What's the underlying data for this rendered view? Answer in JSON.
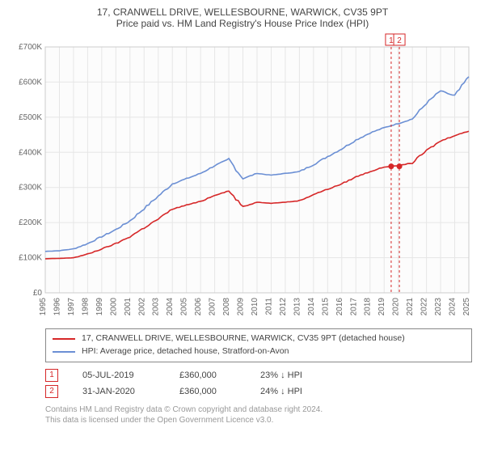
{
  "title_main": "17, CRANWELL DRIVE, WELLESBOURNE, WARWICK, CV35 9PT",
  "title_sub": "Price paid vs. HM Land Registry's House Price Index (HPI)",
  "title_fontsize": 12,
  "chart": {
    "type": "line",
    "background_color": "#fcfcfc",
    "plot_border_color": "#cccccc",
    "grid_color": "#e6e6e6",
    "x": {
      "domain_years": [
        1995,
        2025
      ],
      "ticks": [
        1995,
        1996,
        1997,
        1998,
        1999,
        2000,
        2001,
        2002,
        2003,
        2004,
        2005,
        2006,
        2007,
        2008,
        2009,
        2010,
        2011,
        2012,
        2013,
        2014,
        2015,
        2016,
        2017,
        2018,
        2019,
        2020,
        2021,
        2022,
        2023,
        2024,
        2025
      ],
      "tick_rotation_deg": -90,
      "tick_fontsize": 10
    },
    "y": {
      "domain": [
        0,
        700000
      ],
      "ticks": [
        0,
        100000,
        200000,
        300000,
        400000,
        500000,
        600000,
        700000
      ],
      "tick_labels": [
        "£0",
        "£100K",
        "£200K",
        "£300K",
        "£400K",
        "£500K",
        "£600K",
        "£700K"
      ],
      "tick_fontsize": 10
    },
    "series": [
      {
        "id": "property",
        "label": "17, CRANWELL DRIVE, WELLESBOURNE, WARWICK, CV35 9PT (detached house)",
        "color": "#d62728",
        "line_width": 1.6,
        "points_yearly": [
          97000,
          98000,
          100000,
          110000,
          125000,
          140000,
          160000,
          185000,
          210000,
          238000,
          250000,
          260000,
          278000,
          290000,
          245000,
          258000,
          255000,
          258000,
          262000,
          280000,
          295000,
          310000,
          330000,
          345000,
          358000,
          362000,
          370000,
          405000,
          432000,
          448000,
          460000
        ]
      },
      {
        "id": "hpi",
        "label": "HPI: Average price, detached house, Stratford-on-Avon",
        "color": "#6b8fd4",
        "line_width": 1.6,
        "points_yearly": [
          118000,
          120000,
          125000,
          140000,
          160000,
          180000,
          205000,
          240000,
          275000,
          310000,
          325000,
          340000,
          362000,
          380000,
          325000,
          340000,
          335000,
          340000,
          345000,
          365000,
          388000,
          410000,
          435000,
          455000,
          470000,
          482000,
          495000,
          540000,
          575000,
          560000,
          615000
        ]
      }
    ],
    "markers": [
      {
        "label": "1",
        "year": 2019.5,
        "value": 360000,
        "color": "#d62728"
      },
      {
        "label": "2",
        "year": 2020.08,
        "value": 360000,
        "color": "#d62728"
      }
    ],
    "annotations_top": [
      {
        "label": "1",
        "year": 2019.5,
        "color": "#d62728"
      },
      {
        "label": "2",
        "year": 2020.08,
        "color": "#d62728"
      }
    ]
  },
  "legend": {
    "items": [
      {
        "color": "#d62728",
        "text": "17, CRANWELL DRIVE, WELLESBOURNE, WARWICK, CV35 9PT (detached house)"
      },
      {
        "color": "#6b8fd4",
        "text": "HPI: Average price, detached house, Stratford-on-Avon"
      }
    ]
  },
  "events": [
    {
      "badge": "1",
      "date": "05-JUL-2019",
      "price": "£360,000",
      "hpi": "23% ↓ HPI"
    },
    {
      "badge": "2",
      "date": "31-JAN-2020",
      "price": "£360,000",
      "hpi": "24% ↓ HPI"
    }
  ],
  "footer_line1": "Contains HM Land Registry data © Crown copyright and database right 2024.",
  "footer_line2": "This data is licensed under the Open Government Licence v3.0."
}
